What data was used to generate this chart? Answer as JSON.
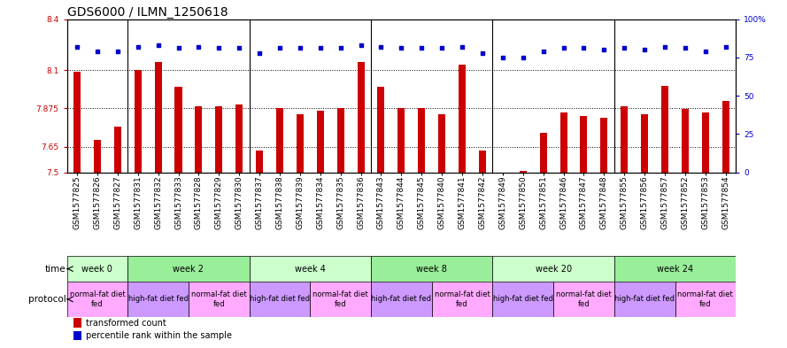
{
  "title": "GDS6000 / ILMN_1250618",
  "samples": [
    "GSM1577825",
    "GSM1577826",
    "GSM1577827",
    "GSM1577831",
    "GSM1577832",
    "GSM1577833",
    "GSM1577828",
    "GSM1577829",
    "GSM1577830",
    "GSM1577837",
    "GSM1577838",
    "GSM1577839",
    "GSM1577834",
    "GSM1577835",
    "GSM1577836",
    "GSM1577843",
    "GSM1577844",
    "GSM1577845",
    "GSM1577840",
    "GSM1577841",
    "GSM1577842",
    "GSM1577849",
    "GSM1577850",
    "GSM1577851",
    "GSM1577846",
    "GSM1577847",
    "GSM1577848",
    "GSM1577855",
    "GSM1577856",
    "GSM1577857",
    "GSM1577852",
    "GSM1577853",
    "GSM1577854"
  ],
  "bar_values": [
    8.09,
    7.69,
    7.77,
    8.1,
    8.15,
    8.0,
    7.89,
    7.89,
    7.9,
    7.63,
    7.88,
    7.84,
    7.86,
    7.88,
    8.15,
    8.0,
    7.88,
    7.88,
    7.84,
    8.13,
    7.63,
    7.5,
    7.51,
    7.73,
    7.85,
    7.83,
    7.82,
    7.89,
    7.84,
    8.01,
    7.87,
    7.85,
    7.92
  ],
  "dot_values": [
    82,
    79,
    79,
    82,
    83,
    81,
    82,
    81,
    81,
    78,
    81,
    81,
    81,
    81,
    83,
    82,
    81,
    81,
    81,
    82,
    78,
    75,
    75,
    79,
    81,
    81,
    80,
    81,
    80,
    82,
    81,
    79,
    82
  ],
  "ylim_left": [
    7.5,
    8.4
  ],
  "ylim_right": [
    0,
    100
  ],
  "yticks_left": [
    7.5,
    7.65,
    7.875,
    8.1,
    8.4
  ],
  "yticks_right": [
    0,
    25,
    50,
    75,
    100
  ],
  "bar_color": "#cc0000",
  "dot_color": "#0000cc",
  "bg_color": "#ffffff",
  "plot_bg": "#ffffff",
  "grid_color": "#000000",
  "time_groups": [
    {
      "label": "week 0",
      "start": 0,
      "end": 3
    },
    {
      "label": "week 2",
      "start": 3,
      "end": 9
    },
    {
      "label": "week 4",
      "start": 9,
      "end": 15
    },
    {
      "label": "week 8",
      "start": 15,
      "end": 21
    },
    {
      "label": "week 20",
      "start": 21,
      "end": 27
    },
    {
      "label": "week 24",
      "start": 27,
      "end": 33
    }
  ],
  "time_colors": [
    "#ccffcc",
    "#99ee99",
    "#ccffcc",
    "#99ee99",
    "#ccffcc",
    "#99ee99"
  ],
  "protocol_groups": [
    {
      "label": "normal-fat diet\nfed",
      "start": 0,
      "end": 3,
      "color": "#ffaaff"
    },
    {
      "label": "high-fat diet fed",
      "start": 3,
      "end": 6,
      "color": "#cc99ff"
    },
    {
      "label": "normal-fat diet\nfed",
      "start": 6,
      "end": 9,
      "color": "#ffaaff"
    },
    {
      "label": "high-fat diet fed",
      "start": 9,
      "end": 12,
      "color": "#cc99ff"
    },
    {
      "label": "normal-fat diet\nfed",
      "start": 12,
      "end": 15,
      "color": "#ffaaff"
    },
    {
      "label": "high-fat diet fed",
      "start": 15,
      "end": 18,
      "color": "#cc99ff"
    },
    {
      "label": "normal-fat diet\nfed",
      "start": 18,
      "end": 21,
      "color": "#ffaaff"
    },
    {
      "label": "high-fat diet fed",
      "start": 21,
      "end": 24,
      "color": "#cc99ff"
    },
    {
      "label": "normal-fat diet\nfed",
      "start": 24,
      "end": 27,
      "color": "#ffaaff"
    },
    {
      "label": "high-fat diet fed",
      "start": 27,
      "end": 30,
      "color": "#cc99ff"
    },
    {
      "label": "normal-fat diet\nfed",
      "start": 30,
      "end": 33,
      "color": "#ffaaff"
    }
  ],
  "legend_bar_label": "transformed count",
  "legend_dot_label": "percentile rank within the sample",
  "title_fontsize": 10,
  "tick_fontsize": 6.5,
  "label_fontsize": 7.5,
  "bar_width": 0.35
}
